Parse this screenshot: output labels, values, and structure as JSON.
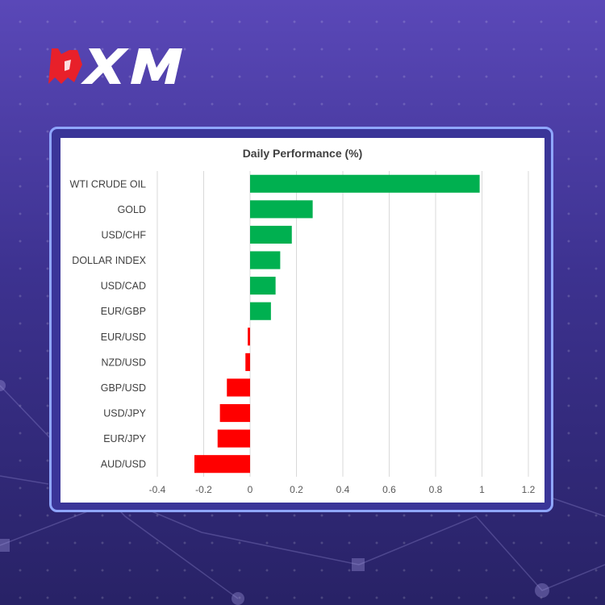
{
  "brand": {
    "logo_text": "XM",
    "colors": {
      "accent": "#e8202a",
      "background": "#4a3ea8",
      "frame": "#8fa6ff"
    }
  },
  "chart_data": {
    "type": "bar",
    "orientation": "horizontal",
    "title": "Daily Performance (%)",
    "xlabel": "",
    "ylabel": "",
    "categories": [
      "WTI CRUDE OIL",
      "GOLD",
      "USD/CHF",
      "DOLLAR INDEX",
      "USD/CAD",
      "EUR/GBP",
      "EUR/USD",
      "NZD/USD",
      "GBP/USD",
      "USD/JPY",
      "EUR/JPY",
      "AUD/USD"
    ],
    "values": [
      0.99,
      0.27,
      0.18,
      0.13,
      0.11,
      0.09,
      -0.01,
      -0.02,
      -0.1,
      -0.13,
      -0.14,
      -0.24
    ],
    "xlim": [
      -0.4,
      1.2
    ],
    "xticks": [
      -0.4,
      -0.2,
      0,
      0.2,
      0.4,
      0.6,
      0.8,
      1,
      1.2
    ],
    "xtick_labels": [
      "-0.4",
      "-0.2",
      "0",
      "0.2",
      "0.4",
      "0.6",
      "0.8",
      "1",
      "1.2"
    ],
    "grid": true,
    "positive_color": "#00b050",
    "negative_color": "#ff0000"
  }
}
